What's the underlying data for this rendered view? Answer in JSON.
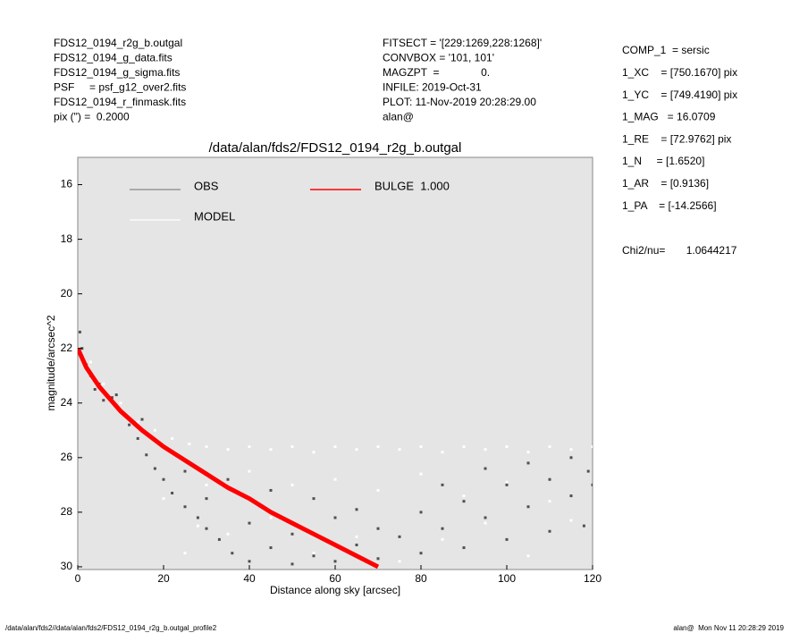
{
  "chart_data": {
    "type": "scatter",
    "title": "/data/alan/fds2/FDS12_0194_r2g_b.outgal",
    "xlabel": "Distance along sky [arcsec]",
    "ylabel": "magnitude/arcsec^2",
    "xlim": [
      0,
      120
    ],
    "xticks": [
      0,
      20,
      40,
      60,
      80,
      100,
      120
    ],
    "ylim": [
      30.1,
      15
    ],
    "yticks": [
      16,
      18,
      20,
      22,
      24,
      26,
      28,
      30
    ],
    "background": "#e5e5e5",
    "header_left": [
      "FDS12_0194_r2g_b.outgal",
      "FDS12_0194_g_data.fits",
      "FDS12_0194_g_sigma.fits",
      "PSF     = psf_g12_over2.fits",
      "FDS12_0194_r_finmask.fits",
      "pix (\") =  0.2000"
    ],
    "header_middle": [
      "FITSECT = '[229:1269,228:1268]'",
      "CONVBOX = '101, 101'",
      "MAGZPT  =              0.",
      "INFILE: 2019-Oct-31",
      "PLOT: 11-Nov-2019 20:28:29.00",
      "alan@"
    ],
    "parameters": [
      "COMP_1  = sersic",
      "1_XC    = [750.1670] pix",
      "1_YC    = [749.4190] pix",
      "1_MAG   = 16.0709",
      "1_RE    = [72.9762] pix",
      "1_N     = [1.6520]",
      "1_AR    = [0.9136]",
      "1_PA    = [-14.2566]"
    ],
    "chi2": "Chi2/nu=       1.0644217",
    "footer_left": "/data/alan/fds2//data/alan/fds2/FDS12_0194_r2g_b.outgal_profile2",
    "footer_right": "alan@  Mon Nov 11 20:28:29 2019",
    "series": [
      {
        "name": "MODEL",
        "kind": "scatter",
        "color": "#ffffff",
        "x": [
          3,
          6,
          10,
          14,
          18,
          22,
          26,
          30,
          35,
          40,
          45,
          50,
          55,
          60,
          65,
          70,
          75,
          80,
          85,
          90,
          95,
          100,
          105,
          110,
          115,
          120,
          40,
          50,
          60,
          70,
          80,
          90,
          100,
          110,
          30,
          28,
          25,
          35,
          45,
          55,
          65,
          75,
          85,
          95,
          105,
          115,
          20
        ],
        "values": [
          22.5,
          23.3,
          24.0,
          24.7,
          25.0,
          25.3,
          25.5,
          25.6,
          25.7,
          25.6,
          25.7,
          25.6,
          25.8,
          25.6,
          25.7,
          25.6,
          25.7,
          25.6,
          25.8,
          25.6,
          25.7,
          25.6,
          25.8,
          25.6,
          25.7,
          25.6,
          26.5,
          27.0,
          26.8,
          27.2,
          26.6,
          27.4,
          26.9,
          27.6,
          27.0,
          28.5,
          29.5,
          28.8,
          28.2,
          29.5,
          28.9,
          29.8,
          29.0,
          28.4,
          29.6,
          28.3,
          27.5
        ]
      },
      {
        "name": "OBS",
        "kind": "scatter",
        "color": "#505050",
        "x": [
          0.5,
          1,
          2,
          3,
          4,
          5,
          6,
          8,
          10,
          12,
          14,
          16,
          18,
          20,
          22,
          25,
          28,
          30,
          33,
          36,
          40,
          45,
          50,
          55,
          60,
          65,
          70,
          75,
          80,
          85,
          90,
          95,
          100,
          105,
          110,
          115,
          118,
          120,
          30,
          40,
          50,
          60,
          70,
          80,
          90,
          100,
          110,
          119,
          35,
          45,
          55,
          65,
          85,
          95,
          105,
          115,
          25,
          15,
          9
        ],
        "values": [
          21.4,
          22.0,
          22.6,
          23.0,
          23.5,
          23.3,
          23.9,
          23.8,
          24.3,
          24.8,
          25.3,
          25.9,
          26.4,
          26.8,
          27.3,
          27.8,
          28.2,
          28.6,
          29.0,
          29.5,
          29.8,
          29.3,
          29.9,
          29.6,
          29.8,
          29.2,
          29.7,
          28.9,
          29.5,
          28.6,
          29.3,
          28.2,
          29.0,
          27.8,
          28.7,
          27.4,
          28.5,
          27.0,
          27.5,
          28.4,
          28.8,
          28.2,
          28.6,
          28.0,
          27.6,
          27.0,
          26.8,
          26.5,
          26.8,
          27.2,
          27.5,
          27.9,
          27.0,
          26.4,
          26.2,
          26.0,
          26.5,
          24.6,
          23.7
        ]
      },
      {
        "name": "BULGE  1.000",
        "kind": "line",
        "color": "#ff0000",
        "x": [
          0,
          2,
          5,
          10,
          15,
          20,
          25,
          30,
          35,
          40,
          45,
          50,
          55,
          60,
          65,
          70
        ],
        "values": [
          22.0,
          22.7,
          23.4,
          24.3,
          25.0,
          25.6,
          26.1,
          26.6,
          27.1,
          27.5,
          28.0,
          28.4,
          28.8,
          29.2,
          29.6,
          30.0
        ]
      }
    ]
  }
}
